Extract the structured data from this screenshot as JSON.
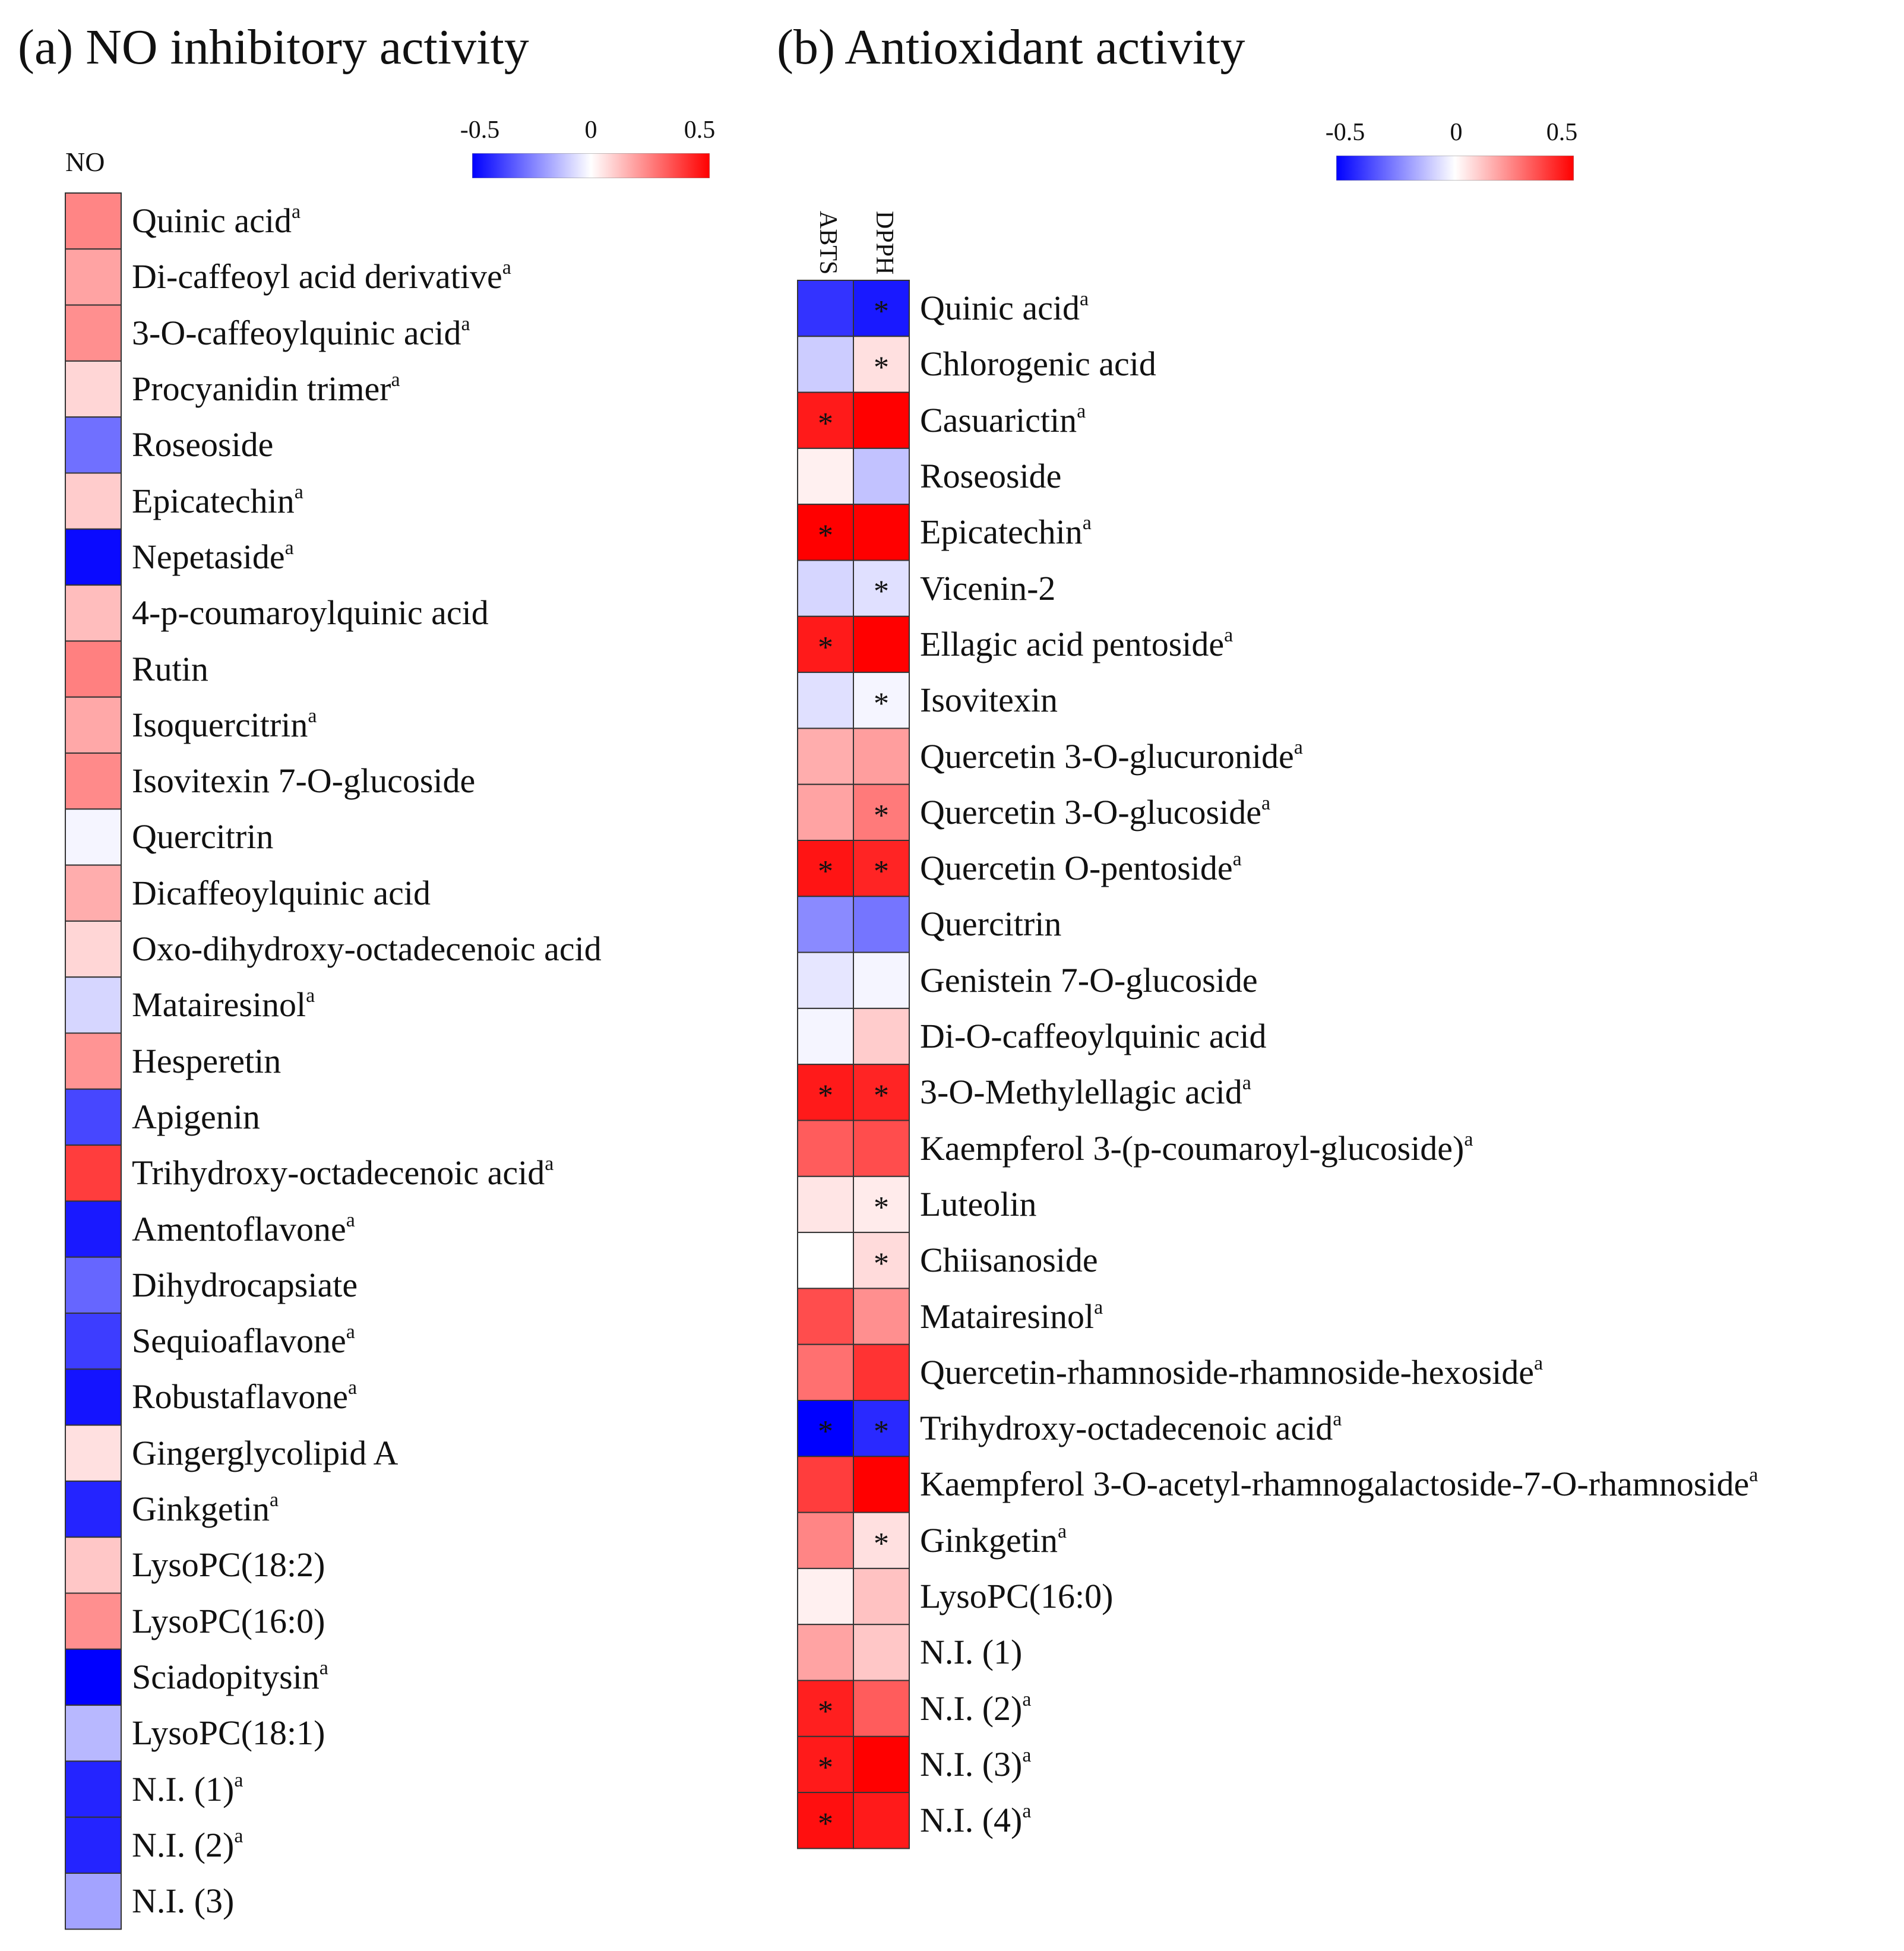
{
  "chart_data": [
    {
      "type": "heatmap",
      "title": "(a) NO inhibitory activity",
      "columns": [
        "NO"
      ],
      "colorbar": {
        "min": -0.5,
        "max": 0.5,
        "tick_labels": [
          "-0.5",
          "0",
          "0.5"
        ],
        "low_color": "#0000ff",
        "mid_color": "#ffffff",
        "high_color": "#ff0000"
      },
      "rows": [
        {
          "label": "Quinic acid",
          "sup": "a",
          "values": [
            0.24
          ]
        },
        {
          "label": "Di-caffeoyl acid derivative",
          "sup": "a",
          "values": [
            0.18
          ]
        },
        {
          "label": "3-O-caffeoylquinic acid",
          "sup": "a",
          "values": [
            0.22
          ]
        },
        {
          "label": "Procyanidin trimer",
          "sup": "a",
          "values": [
            0.08
          ]
        },
        {
          "label": "Roseoside",
          "sup": "",
          "values": [
            -0.28
          ]
        },
        {
          "label": "Epicatechin",
          "sup": "a",
          "values": [
            0.1
          ]
        },
        {
          "label": "Nepetaside",
          "sup": "a",
          "values": [
            -0.48
          ]
        },
        {
          "label": "4-p-coumaroylquinic acid",
          "sup": "",
          "values": [
            0.13
          ]
        },
        {
          "label": "Rutin",
          "sup": "",
          "values": [
            0.25
          ]
        },
        {
          "label": "Isoquercitrin",
          "sup": "a",
          "values": [
            0.17
          ]
        },
        {
          "label": "Isovitexin 7-O-glucoside",
          "sup": "",
          "values": [
            0.23
          ]
        },
        {
          "label": "Quercitrin",
          "sup": "",
          "values": [
            -0.02
          ]
        },
        {
          "label": "Dicaffeoylquinic acid",
          "sup": "",
          "values": [
            0.16
          ]
        },
        {
          "label": "Oxo-dihydroxy-octadecenoic acid",
          "sup": "",
          "values": [
            0.08
          ]
        },
        {
          "label": "Matairesinol",
          "sup": "a",
          "values": [
            -0.08
          ]
        },
        {
          "label": "Hesperetin",
          "sup": "",
          "values": [
            0.21
          ]
        },
        {
          "label": "Apigenin",
          "sup": "",
          "values": [
            -0.36
          ]
        },
        {
          "label": "Trihydroxy-octadecenoic acid",
          "sup": "a",
          "values": [
            0.38
          ]
        },
        {
          "label": "Amentoflavone",
          "sup": "a",
          "values": [
            -0.45
          ]
        },
        {
          "label": "Dihydrocapsiate",
          "sup": "",
          "values": [
            -0.3
          ]
        },
        {
          "label": "Sequioaflavone",
          "sup": "a",
          "values": [
            -0.38
          ]
        },
        {
          "label": "Robustaflavone",
          "sup": "a",
          "values": [
            -0.46
          ]
        },
        {
          "label": "Gingerglycolipid A",
          "sup": "",
          "values": [
            0.06
          ]
        },
        {
          "label": "Ginkgetin",
          "sup": "a",
          "values": [
            -0.43
          ]
        },
        {
          "label": "LysoPC(18:2)",
          "sup": "",
          "values": [
            0.11
          ]
        },
        {
          "label": "LysoPC(16:0)",
          "sup": "",
          "values": [
            0.22
          ]
        },
        {
          "label": "Sciadopitysin",
          "sup": "a",
          "values": [
            -0.5
          ]
        },
        {
          "label": "LysoPC(18:1)",
          "sup": "",
          "values": [
            -0.14
          ]
        },
        {
          "label": "N.I. (1)",
          "sup": "a",
          "values": [
            -0.43
          ]
        },
        {
          "label": "N.I. (2)",
          "sup": "a",
          "values": [
            -0.43
          ]
        },
        {
          "label": "N.I. (3)",
          "sup": "",
          "values": [
            -0.18
          ]
        }
      ]
    },
    {
      "type": "heatmap",
      "title": "(b) Antioxidant activity",
      "columns": [
        "ABTS",
        "DPPH"
      ],
      "colorbar": {
        "min": -0.5,
        "max": 0.5,
        "tick_labels": [
          "-0.5",
          "0",
          "0.5"
        ],
        "low_color": "#0000ff",
        "mid_color": "#ffffff",
        "high_color": "#ff0000"
      },
      "significance_mark": "*",
      "rows": [
        {
          "label": "Quinic acid",
          "sup": "a",
          "values": [
            -0.4,
            -0.45
          ],
          "sig": [
            false,
            true
          ]
        },
        {
          "label": "Chlorogenic acid",
          "sup": "",
          "values": [
            -0.1,
            0.06
          ],
          "sig": [
            false,
            true
          ]
        },
        {
          "label": "Casuarictin",
          "sup": "a",
          "values": [
            0.45,
            0.5
          ],
          "sig": [
            true,
            false
          ]
        },
        {
          "label": "Roseoside",
          "sup": "",
          "values": [
            0.03,
            -0.12
          ],
          "sig": [
            false,
            false
          ]
        },
        {
          "label": "Epicatechin",
          "sup": "a",
          "values": [
            0.5,
            0.5
          ],
          "sig": [
            true,
            false
          ]
        },
        {
          "label": "Vicenin-2",
          "sup": "",
          "values": [
            -0.08,
            -0.06
          ],
          "sig": [
            false,
            true
          ]
        },
        {
          "label": "Ellagic acid pentoside",
          "sup": "a",
          "values": [
            0.45,
            0.5
          ],
          "sig": [
            true,
            false
          ]
        },
        {
          "label": "Isovitexin",
          "sup": "",
          "values": [
            -0.06,
            -0.02
          ],
          "sig": [
            false,
            true
          ]
        },
        {
          "label": "Quercetin 3-O-glucuronide",
          "sup": "a",
          "values": [
            0.16,
            0.19
          ],
          "sig": [
            false,
            false
          ]
        },
        {
          "label": "Quercetin 3-O-glucoside",
          "sup": "a",
          "values": [
            0.18,
            0.26
          ],
          "sig": [
            false,
            true
          ]
        },
        {
          "label": "Quercetin O-pentoside",
          "sup": "a",
          "values": [
            0.46,
            0.43
          ],
          "sig": [
            true,
            true
          ]
        },
        {
          "label": "Quercitrin",
          "sup": "",
          "values": [
            -0.23,
            -0.27
          ],
          "sig": [
            false,
            false
          ]
        },
        {
          "label": "Genistein 7-O-glucoside",
          "sup": "",
          "values": [
            -0.05,
            -0.02
          ],
          "sig": [
            false,
            false
          ]
        },
        {
          "label": "Di-O-caffeoylquinic acid",
          "sup": "",
          "values": [
            -0.02,
            0.1
          ],
          "sig": [
            false,
            false
          ]
        },
        {
          "label": "3-O-Methylellagic acid",
          "sup": "a",
          "values": [
            0.45,
            0.43
          ],
          "sig": [
            true,
            true
          ]
        },
        {
          "label": "Kaempferol 3-(p-coumaroyl-glucoside)",
          "sup": "a",
          "values": [
            0.32,
            0.35
          ],
          "sig": [
            false,
            false
          ]
        },
        {
          "label": "Luteolin",
          "sup": "",
          "values": [
            0.05,
            0.04
          ],
          "sig": [
            false,
            true
          ]
        },
        {
          "label": "Chiisanoside",
          "sup": "",
          "values": [
            0.0,
            0.07
          ],
          "sig": [
            false,
            true
          ]
        },
        {
          "label": "Matairesinol",
          "sup": "a",
          "values": [
            0.35,
            0.22
          ],
          "sig": [
            false,
            false
          ]
        },
        {
          "label": "Quercetin-rhamnoside-rhamnoside-hexoside",
          "sup": "a",
          "values": [
            0.28,
            0.4
          ],
          "sig": [
            false,
            false
          ]
        },
        {
          "label": "Trihydroxy-octadecenoic acid",
          "sup": "a",
          "values": [
            -0.5,
            -0.42
          ],
          "sig": [
            true,
            true
          ]
        },
        {
          "label": "Kaempferol 3-O-acetyl-rhamnogalactoside-7-O-rhamnoside",
          "sup": "a",
          "values": [
            0.38,
            0.5
          ],
          "sig": [
            false,
            false
          ]
        },
        {
          "label": "Ginkgetin",
          "sup": "a",
          "values": [
            0.24,
            0.06
          ],
          "sig": [
            false,
            true
          ]
        },
        {
          "label": "LysoPC(16:0)",
          "sup": "",
          "values": [
            0.03,
            0.12
          ],
          "sig": [
            false,
            false
          ]
        },
        {
          "label": "N.I. (1)",
          "sup": "",
          "values": [
            0.18,
            0.11
          ],
          "sig": [
            false,
            false
          ]
        },
        {
          "label": "N.I. (2)",
          "sup": "a",
          "values": [
            0.44,
            0.32
          ],
          "sig": [
            true,
            false
          ]
        },
        {
          "label": "N.I. (3)",
          "sup": "a",
          "values": [
            0.45,
            0.5
          ],
          "sig": [
            true,
            false
          ]
        },
        {
          "label": "N.I. (4)",
          "sup": "a",
          "values": [
            0.47,
            0.45
          ],
          "sig": [
            true,
            false
          ]
        }
      ]
    }
  ]
}
